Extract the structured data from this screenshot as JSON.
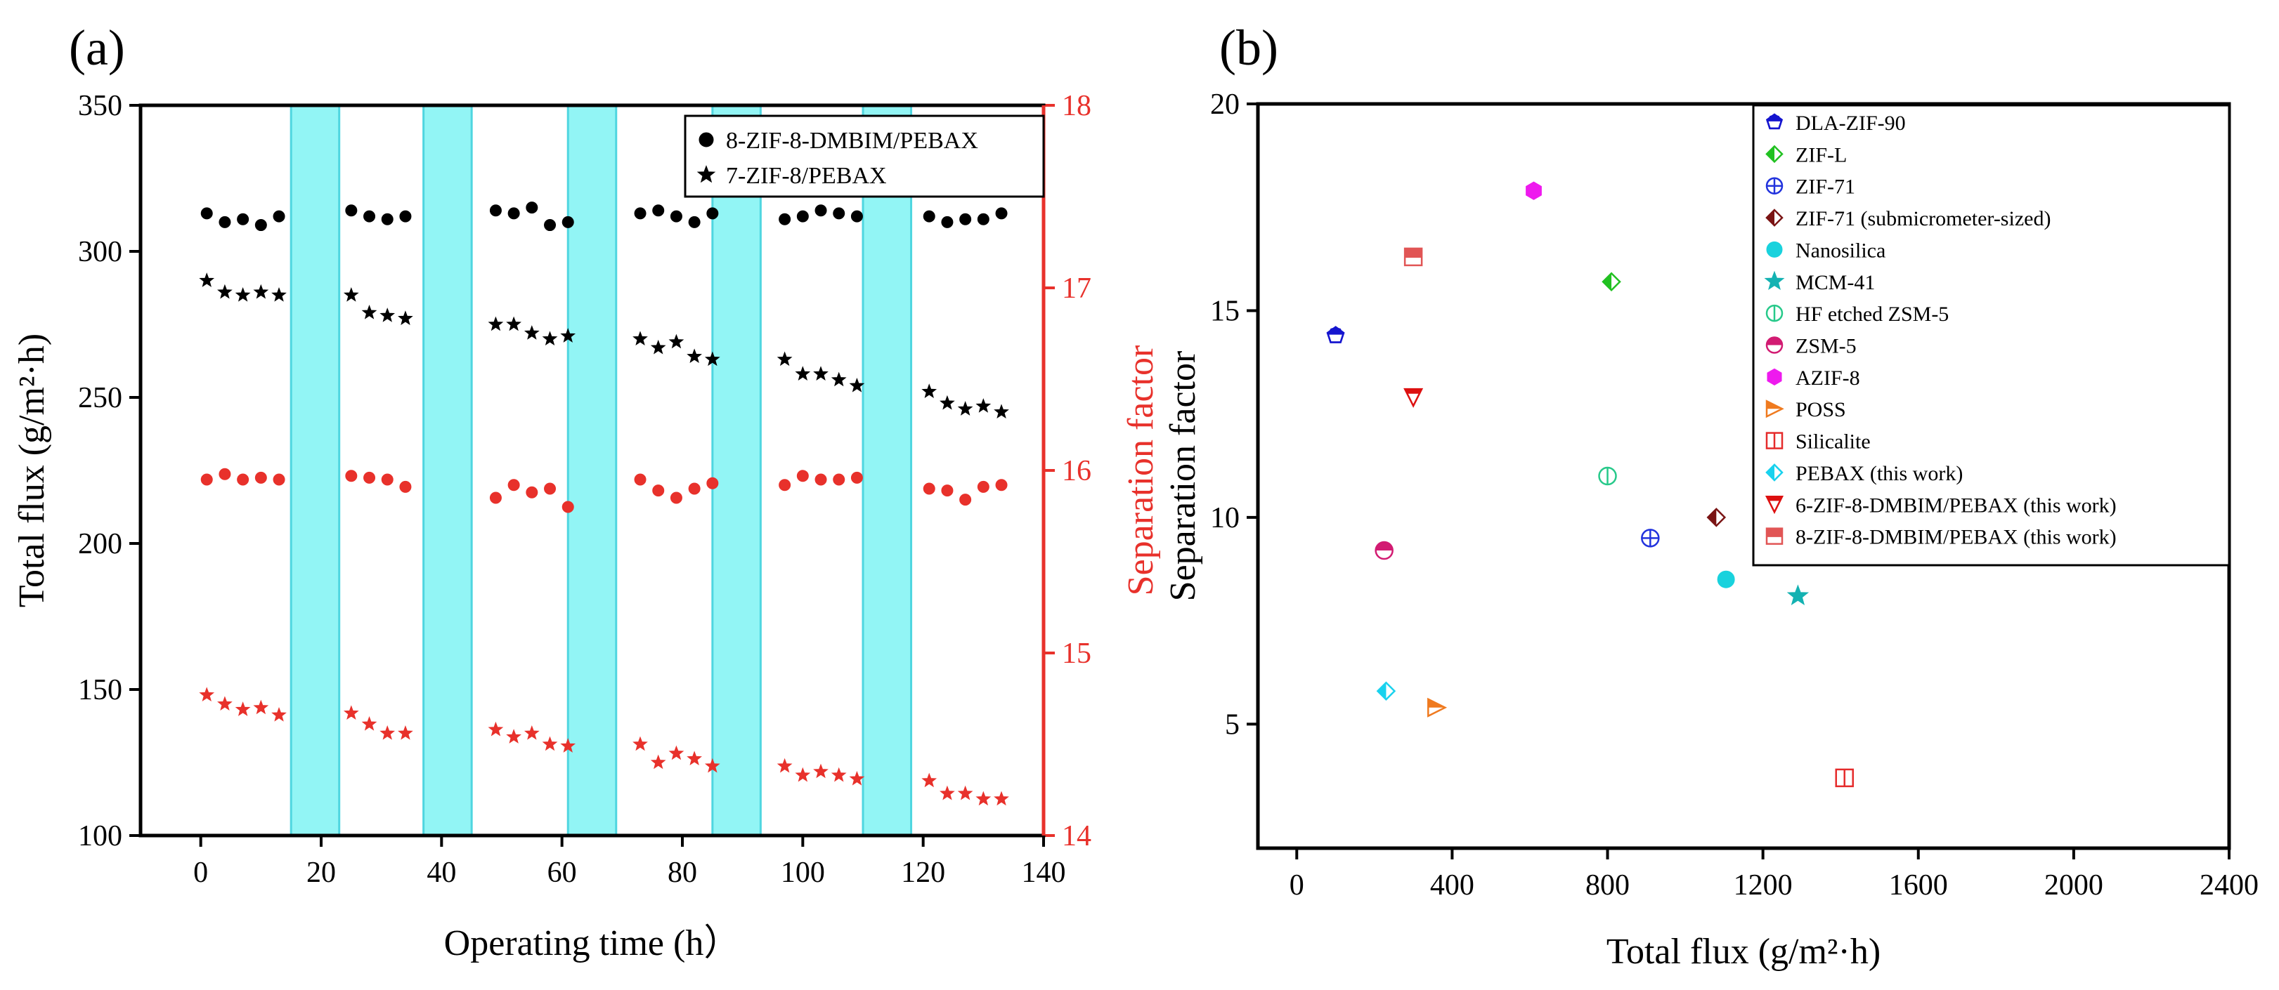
{
  "chart_data": [
    {
      "panel_label": "(a)",
      "type": "scatter",
      "xlabel": "Operating time (h）",
      "ylabel_left": "Total flux (g/m²·h)",
      "ylabel_right": "Separation factor",
      "xlim": [
        -10,
        140
      ],
      "ylim_left": [
        100,
        350
      ],
      "ylim_right": [
        14,
        18
      ],
      "x_ticks": [
        "0",
        "20",
        "40",
        "60",
        "80",
        "100",
        "120",
        "140"
      ],
      "y_ticks_left": [
        "100",
        "150",
        "200",
        "250",
        "300",
        "350"
      ],
      "y_ticks_right": [
        "14",
        "15",
        "16",
        "17",
        "18"
      ],
      "shaded_intervals": [
        [
          15,
          23
        ],
        [
          37,
          45
        ],
        [
          61,
          69
        ],
        [
          85,
          93
        ],
        [
          110,
          118
        ]
      ],
      "legend": [
        "8-ZIF-8-DMBIM/PEBAX",
        "7-ZIF-8/PEBAX"
      ],
      "series": [
        {
          "name": "8-ZIF-8-DMBIM/PEBAX",
          "metric": "Total flux",
          "axis": "left",
          "marker": "circle",
          "color": "#000000",
          "x": [
            1,
            4,
            7,
            10,
            13,
            25,
            28,
            31,
            34,
            49,
            52,
            55,
            58,
            61,
            73,
            76,
            79,
            82,
            85,
            97,
            100,
            103,
            106,
            109,
            121,
            124,
            127,
            130,
            133
          ],
          "y": [
            313,
            310,
            311,
            309,
            312,
            314,
            312,
            311,
            312,
            314,
            313,
            315,
            309,
            310,
            313,
            314,
            312,
            310,
            313,
            311,
            312,
            314,
            313,
            312,
            312,
            310,
            311,
            311,
            313
          ]
        },
        {
          "name": "7-ZIF-8/PEBAX",
          "metric": "Total flux",
          "axis": "left",
          "marker": "star",
          "color": "#000000",
          "x": [
            1,
            4,
            7,
            10,
            13,
            25,
            28,
            31,
            34,
            49,
            52,
            55,
            58,
            61,
            73,
            76,
            79,
            82,
            85,
            97,
            100,
            103,
            106,
            109,
            121,
            124,
            127,
            130,
            133
          ],
          "y": [
            290,
            286,
            285,
            286,
            285,
            285,
            279,
            278,
            277,
            275,
            275,
            272,
            270,
            271,
            270,
            267,
            269,
            264,
            263,
            263,
            258,
            258,
            256,
            254,
            252,
            248,
            246,
            247,
            245
          ]
        },
        {
          "name": "8-ZIF-8-DMBIM/PEBAX",
          "metric": "Separation factor",
          "axis": "right",
          "marker": "circle",
          "color": "#e8312b",
          "x": [
            1,
            4,
            7,
            10,
            13,
            25,
            28,
            31,
            34,
            49,
            52,
            55,
            58,
            61,
            73,
            76,
            79,
            82,
            85,
            97,
            100,
            103,
            106,
            109,
            121,
            124,
            127,
            130,
            133
          ],
          "y": [
            15.95,
            15.98,
            15.95,
            15.96,
            15.95,
            15.97,
            15.96,
            15.95,
            15.91,
            15.85,
            15.92,
            15.88,
            15.9,
            15.8,
            15.95,
            15.89,
            15.85,
            15.9,
            15.93,
            15.92,
            15.97,
            15.95,
            15.95,
            15.96,
            15.9,
            15.89,
            15.84,
            15.91,
            15.92
          ]
        },
        {
          "name": "7-ZIF-8/PEBAX",
          "metric": "Separation factor",
          "axis": "right",
          "marker": "star",
          "color": "#e8312b",
          "x": [
            1,
            4,
            7,
            10,
            13,
            25,
            28,
            31,
            34,
            49,
            52,
            55,
            58,
            61,
            73,
            76,
            79,
            82,
            85,
            97,
            100,
            103,
            106,
            109,
            121,
            124,
            127,
            130,
            133
          ],
          "y": [
            14.77,
            14.72,
            14.69,
            14.7,
            14.66,
            14.67,
            14.61,
            14.56,
            14.56,
            14.58,
            14.54,
            14.56,
            14.5,
            14.49,
            14.5,
            14.4,
            14.45,
            14.42,
            14.38,
            14.38,
            14.33,
            14.35,
            14.33,
            14.31,
            14.3,
            14.23,
            14.23,
            14.2,
            14.2
          ]
        }
      ]
    },
    {
      "panel_label": "(b)",
      "type": "scatter",
      "xlabel": "Total flux (g/m²·h)",
      "ylabel": "Separation factor",
      "xlim": [
        -100,
        2400
      ],
      "ylim": [
        2,
        20
      ],
      "x_ticks": [
        "0",
        "400",
        "800",
        "1200",
        "1600",
        "2000",
        "2400"
      ],
      "y_ticks": [
        "5",
        "10",
        "15",
        "20"
      ],
      "points": [
        {
          "name": "DLA-ZIF-90",
          "x": 100,
          "y": 14.4,
          "marker": "pentagon",
          "color": "#1515cf"
        },
        {
          "name": "ZIF-L",
          "x": 810,
          "y": 15.7,
          "marker": "diamond",
          "color": "#21c121"
        },
        {
          "name": "ZIF-71",
          "x": 910,
          "y": 9.5,
          "marker": "circle-plus",
          "color": "#2233dd"
        },
        {
          "name": "ZIF-71 (submicrometer-sized)",
          "x": 1080,
          "y": 10.0,
          "marker": "diamond",
          "color": "#7a1414"
        },
        {
          "name": "Nanosilica",
          "x": 1105,
          "y": 8.5,
          "marker": "circle",
          "color": "#19d2dd"
        },
        {
          "name": "MCM-41",
          "x": 1290,
          "y": 8.1,
          "marker": "star",
          "color": "#14b2b2"
        },
        {
          "name": "HF etched ZSM-5",
          "x": 800,
          "y": 11.0,
          "marker": "circle-bar",
          "color": "#27c98a"
        },
        {
          "name": "ZSM-5",
          "x": 225,
          "y": 9.2,
          "marker": "circle-half",
          "color": "#d21b72"
        },
        {
          "name": "AZIF-8",
          "x": 610,
          "y": 17.9,
          "marker": "hexagon",
          "color": "#ee1aee"
        },
        {
          "name": "POSS",
          "x": 360,
          "y": 5.4,
          "marker": "triangle-right",
          "color": "#ef7a1f"
        },
        {
          "name": "Silicalite",
          "x": 1410,
          "y": 3.7,
          "marker": "square",
          "color": "#e52b2b"
        },
        {
          "name": "PEBAX (this work)",
          "x": 230,
          "y": 5.8,
          "marker": "diamond",
          "color": "#19d2ee"
        },
        {
          "name": "6-ZIF-8-DMBIM/PEBAX (this work)",
          "x": 300,
          "y": 12.9,
          "marker": "triangle-down",
          "color": "#dd1010"
        },
        {
          "name": "8-ZIF-8-DMBIM/PEBAX (this work)",
          "x": 300,
          "y": 16.3,
          "marker": "square-half",
          "color": "#e15555"
        }
      ]
    }
  ]
}
